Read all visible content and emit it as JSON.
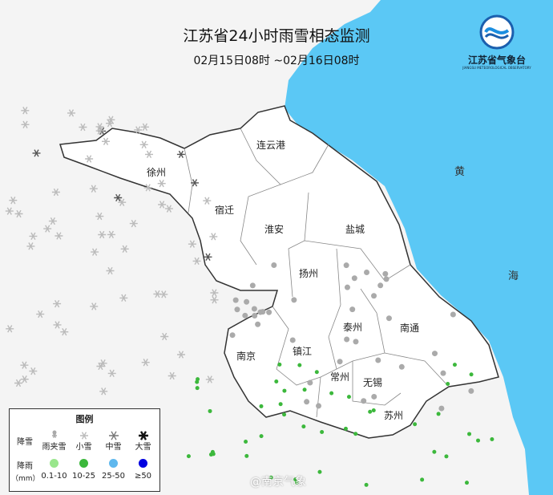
{
  "title": "江苏省24小时雨雪相态监测",
  "subtitle": "02月15日08时 ~02月16日08时",
  "logo": {
    "text": "江苏省气象台",
    "subtext": "JIANGSU METEOROLOGICAL OBSERVATORY"
  },
  "cities": [
    "连云港",
    "徐州",
    "宿迁",
    "淮安",
    "盐城",
    "扬州",
    "泰州",
    "南通",
    "南京",
    "镇江",
    "常州",
    "无锡",
    "苏州"
  ],
  "sea_label": [
    "黄",
    "海"
  ],
  "legend": {
    "title": "图例",
    "snow_label": "降雪",
    "snow_items": [
      {
        "label": "雨夹雪",
        "icon": "sleet-icon"
      },
      {
        "label": "小雪",
        "icon": "light-snow-icon"
      },
      {
        "label": "中雪",
        "icon": "moderate-snow-icon"
      },
      {
        "label": "大雪",
        "icon": "heavy-snow-icon"
      }
    ],
    "rain_label": "降雨",
    "rain_unit": "（mm）",
    "rain_items": [
      {
        "label": "0.1-10",
        "color": "#99e68c"
      },
      {
        "label": "10-25",
        "color": "#3cb83c"
      },
      {
        "label": "25-50",
        "color": "#5fb8ee"
      },
      {
        "label": "≥50",
        "color": "#0000e0"
      }
    ]
  },
  "colors": {
    "sea": "#5bc8f5",
    "province": "#ffffff",
    "outside": "#f4f4f4"
  },
  "watermark": "@南京气象"
}
